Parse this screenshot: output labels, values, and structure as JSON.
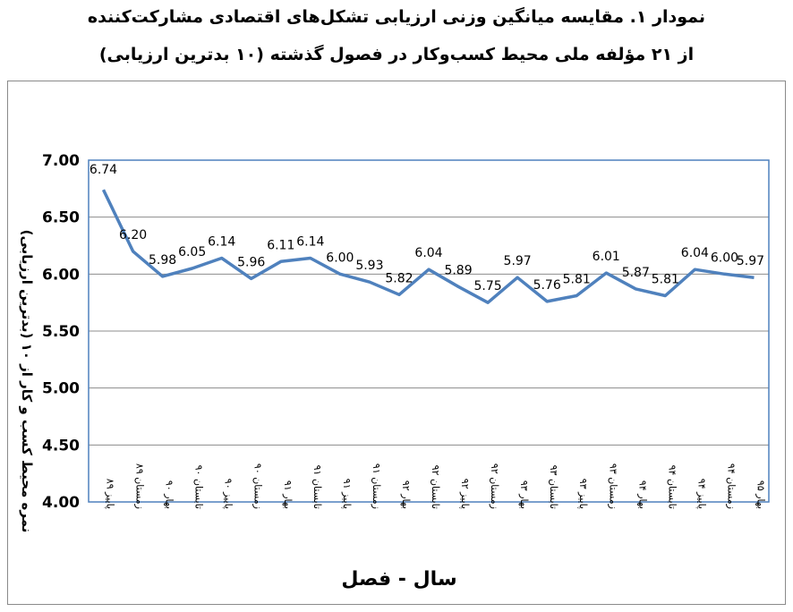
{
  "title_line1": "نمودار ۱. مقایسه میانگین وزنی ارزیابی تشکل‌های اقتصادی مشارکت‌کننده",
  "title_line2": "از ۲۱ مؤلفه ملی محیط کسب‌وکار در فصول گذشته (۱۰ بدترین ارزیابی)",
  "chart_data": {
    "type": "line",
    "xlabel": "سال - فصل",
    "ylabel": "نمره محیط کسب و کار از ۱۰ (بدترین ارزیابی)",
    "ylim": [
      4.0,
      7.0
    ],
    "yticks": [
      "4.00",
      "4.50",
      "5.00",
      "5.50",
      "6.00",
      "6.50",
      "7.00"
    ],
    "grid": true,
    "color": "#4f81bd",
    "categories": [
      "پاییز ۸۹",
      "زمستان ۸۹",
      "بهار ۹۰",
      "تابستان ۹۰",
      "پاییز ۹۰",
      "زمستان ۹۰",
      "بهار ۹۱",
      "تابستان ۹۱",
      "پاییز ۹۱",
      "زمستان ۹۱",
      "بهار ۹۲",
      "تابستان ۹۲",
      "پاییز ۹۲",
      "زمستان ۹۲",
      "بهار ۹۳",
      "تابستان ۹۳",
      "پاییز ۹۳",
      "زمستان ۹۳",
      "بهار ۹۴",
      "تابستان ۹۴",
      "پاییز ۹۴",
      "زمستان ۹۴",
      "بهار ۹۵"
    ],
    "values": [
      6.74,
      6.2,
      5.98,
      6.05,
      6.14,
      5.96,
      6.11,
      6.14,
      6.0,
      5.93,
      5.82,
      6.04,
      5.89,
      5.75,
      5.97,
      5.76,
      5.81,
      6.01,
      5.87,
      5.81,
      6.04,
      6.0,
      5.97
    ],
    "labels": [
      "6.74",
      "6.20",
      "5.98",
      "6.05",
      "6.14",
      "5.96",
      "6.11",
      "6.14",
      "6.00",
      "5.93",
      "5.82",
      "6.04",
      "5.89",
      "5.75",
      "5.97",
      "5.76",
      "5.81",
      "6.01",
      "5.87",
      "5.81",
      "6.04",
      "6.00",
      "5.97"
    ]
  }
}
